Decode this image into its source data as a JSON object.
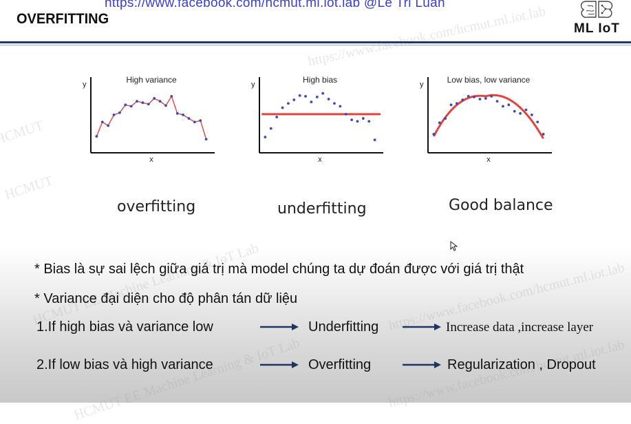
{
  "banner": {
    "url_text": "https://www.facebook.com/hcmut.ml.iot.lab @Le Tri Luan"
  },
  "header": {
    "title": "OVERFITTING",
    "logo_text": "ML IoT"
  },
  "watermark": {
    "fb": "https://www.facebook.com/hcmut.ml.iot.lab",
    "hcmut": "HCMUT",
    "lab": "HCMUT EE Machine Learning & IoT Lab"
  },
  "chart_data": [
    {
      "type": "scatter",
      "title": "High variance",
      "xlabel": "x",
      "ylabel": "y",
      "fit": "zigzag",
      "x": [
        1,
        2,
        3,
        4,
        5,
        6,
        7,
        8,
        9,
        10,
        11,
        12,
        13,
        14,
        15,
        16,
        17,
        18,
        19,
        20
      ],
      "y": [
        2.3,
        4.3,
        3.8,
        5.3,
        5.6,
        6.7,
        6.5,
        7.2,
        7.0,
        6.8,
        7.6,
        7.2,
        6.6,
        7.9,
        5.5,
        5.3,
        4.8,
        4.3,
        4.5,
        1.9
      ],
      "ylim": [
        0,
        10
      ]
    },
    {
      "type": "scatter",
      "title": "High bias",
      "xlabel": "x",
      "ylabel": "y",
      "fit": "flat",
      "x": [
        1,
        2,
        3,
        4,
        5,
        6,
        7,
        8,
        9,
        10,
        11,
        12,
        13,
        14,
        15,
        16,
        17,
        18,
        19,
        20
      ],
      "y": [
        2.2,
        3.4,
        5.0,
        6.3,
        6.9,
        7.4,
        8.0,
        7.9,
        7.1,
        7.8,
        8.3,
        7.5,
        6.9,
        6.5,
        5.4,
        4.6,
        4.4,
        4.8,
        4.4,
        1.8
      ],
      "fit_y": 5.4,
      "ylim": [
        0,
        10
      ]
    },
    {
      "type": "scatter",
      "title": "Low bias, low variance",
      "xlabel": "x",
      "ylabel": "y",
      "fit": "curve",
      "x": [
        1,
        2,
        3,
        4,
        5,
        6,
        7,
        8,
        9,
        10,
        11,
        12,
        13,
        14,
        15,
        16,
        17,
        18,
        19,
        20
      ],
      "y": [
        2.6,
        4.2,
        4.8,
        6.7,
        6.9,
        7.4,
        7.9,
        7.8,
        7.5,
        7.6,
        7.9,
        7.2,
        6.5,
        6.7,
        5.8,
        5.5,
        6.0,
        5.3,
        4.3,
        2.6
      ],
      "curve": [
        [
          1,
          2.3
        ],
        [
          5,
          6.2
        ],
        [
          10,
          7.9
        ],
        [
          15,
          6.6
        ],
        [
          20,
          2.0
        ]
      ],
      "ylim": [
        0,
        10
      ]
    }
  ],
  "captions": {
    "overfitting": "overfitting",
    "underfitting": "underfitting",
    "good": "Good balance"
  },
  "bullets": {
    "bias": "* Bias là sự sai lệch giữa giá trị mà model chúng ta dự đoán được với giá trị thật",
    "variance": "* Variance đại diện cho độ phân tán dữ liệu"
  },
  "rules": [
    {
      "condition": "1.If high bias và variance low",
      "result": "Underfitting",
      "action": "Increase data ,increase layer"
    },
    {
      "condition": "2.If low bias và high variance",
      "result": "Overfitting",
      "action": "Regularization , Dropout"
    }
  ],
  "colors": {
    "fit_line": "#e8413a",
    "points": "#3a48c2",
    "banner": "#3b3bd8",
    "rule_bar": "#1d3a6b",
    "arrow": "#1e3561"
  }
}
